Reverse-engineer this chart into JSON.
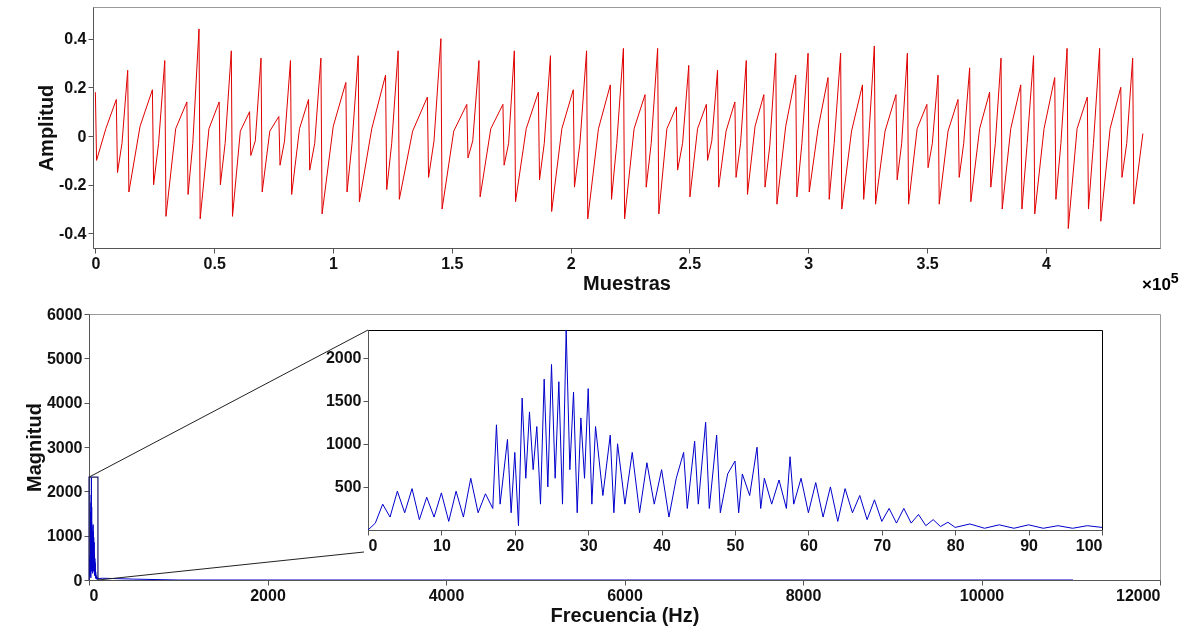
{
  "chart_data": [
    {
      "type": "line",
      "xlabel": "Muestras",
      "ylabel": "Amplitud",
      "annotations": [
        "×10$^{5}$"
      ],
      "xlim": [
        -0.01,
        4.48
      ],
      "ylim": [
        -0.46,
        0.53
      ],
      "xticks": [
        0,
        0.5,
        1,
        1.5,
        2,
        2.5,
        3,
        3.5,
        4
      ],
      "yticks": [
        -0.4,
        -0.2,
        0,
        0.2,
        0.4
      ],
      "x": [
        0,
        0.005,
        0.044,
        0.088,
        0.093,
        0.112,
        0.136,
        0.141,
        0.188,
        0.24,
        0.245,
        0.266,
        0.292,
        0.297,
        0.338,
        0.385,
        0.39,
        0.41,
        0.436,
        0.441,
        0.478,
        0.521,
        0.526,
        0.546,
        0.572,
        0.577,
        0.61,
        0.649,
        0.654,
        0.673,
        0.697,
        0.702,
        0.734,
        0.772,
        0.777,
        0.796,
        0.821,
        0.826,
        0.859,
        0.897,
        0.902,
        0.923,
        0.949,
        0.954,
        1.001,
        1.054,
        1.059,
        1.08,
        1.106,
        1.111,
        1.163,
        1.221,
        1.226,
        1.247,
        1.274,
        1.279,
        1.335,
        1.397,
        1.402,
        1.425,
        1.454,
        1.459,
        1.508,
        1.563,
        1.568,
        1.588,
        1.614,
        1.619,
        1.664,
        1.715,
        1.72,
        1.739,
        1.763,
        1.768,
        1.813,
        1.864,
        1.869,
        1.889,
        1.915,
        1.92,
        1.963,
        2.011,
        2.016,
        2.039,
        2.067,
        2.072,
        2.117,
        2.167,
        2.172,
        2.194,
        2.222,
        2.227,
        2.267,
        2.313,
        2.318,
        2.339,
        2.366,
        2.371,
        2.405,
        2.445,
        2.45,
        2.471,
        2.497,
        2.502,
        2.534,
        2.571,
        2.576,
        2.594,
        2.618,
        2.623,
        2.654,
        2.691,
        2.696,
        2.715,
        2.739,
        2.744,
        2.776,
        2.813,
        2.818,
        2.838,
        2.863,
        2.868,
        2.905,
        2.947,
        2.952,
        2.973,
        2.999,
        3.004,
        3.041,
        3.083,
        3.088,
        3.109,
        3.136,
        3.141,
        3.182,
        3.228,
        3.233,
        3.253,
        3.278,
        3.283,
        3.323,
        3.369,
        3.374,
        3.393,
        3.417,
        3.422,
        3.458,
        3.499,
        3.504,
        3.522,
        3.546,
        3.551,
        3.588,
        3.63,
        3.635,
        3.654,
        3.679,
        3.684,
        3.721,
        3.763,
        3.768,
        3.787,
        3.811,
        3.816,
        3.852,
        3.894,
        3.899,
        3.921,
        3.948,
        3.953,
        3.992,
        4.037,
        4.042,
        4.063,
        4.089,
        4.094,
        4.131,
        4.174,
        4.179,
        4.2,
        4.226,
        4.231,
        4.27,
        4.315,
        4.32,
        4.34,
        4.365,
        4.37,
        4.408
      ],
      "series": [
        {
          "color": "#e00000",
          "values": [
            0.18,
            -0.1,
            0.03,
            0.15,
            -0.15,
            -0.03,
            0.27,
            -0.23,
            0.04,
            0.19,
            -0.2,
            -0.03,
            0.31,
            -0.33,
            0.03,
            0.14,
            -0.24,
            -0.03,
            0.44,
            -0.34,
            0.03,
            0.14,
            -0.2,
            -0.03,
            0.35,
            -0.33,
            0.02,
            0.1,
            -0.08,
            -0.02,
            0.32,
            -0.23,
            0.02,
            0.08,
            -0.12,
            -0.02,
            0.31,
            -0.24,
            0.03,
            0.15,
            -0.14,
            -0.03,
            0.32,
            -0.32,
            0.04,
            0.22,
            -0.23,
            -0.03,
            0.33,
            -0.27,
            0.03,
            0.25,
            -0.22,
            -0.03,
            0.35,
            -0.26,
            0.02,
            0.16,
            -0.17,
            -0.02,
            0.4,
            -0.3,
            0.02,
            0.13,
            -0.09,
            -0.02,
            0.31,
            -0.25,
            0.03,
            0.13,
            -0.12,
            -0.03,
            0.35,
            -0.27,
            0.03,
            0.18,
            -0.18,
            -0.03,
            0.33,
            -0.31,
            0.03,
            0.19,
            -0.21,
            -0.03,
            0.35,
            -0.34,
            0.03,
            0.21,
            -0.26,
            -0.03,
            0.36,
            -0.34,
            0.03,
            0.17,
            -0.21,
            -0.03,
            0.36,
            -0.32,
            0.03,
            0.12,
            -0.14,
            -0.03,
            0.29,
            -0.25,
            0.03,
            0.13,
            -0.1,
            -0.02,
            0.27,
            -0.21,
            0.02,
            0.14,
            -0.17,
            -0.03,
            0.31,
            -0.24,
            0.04,
            0.17,
            -0.21,
            -0.04,
            0.34,
            -0.28,
            0.04,
            0.25,
            -0.25,
            -0.03,
            0.34,
            -0.23,
            0.03,
            0.24,
            -0.26,
            -0.03,
            0.34,
            -0.3,
            0.02,
            0.21,
            -0.26,
            -0.03,
            0.37,
            -0.28,
            0.02,
            0.17,
            -0.18,
            -0.03,
            0.34,
            -0.28,
            0.03,
            0.13,
            -0.13,
            -0.03,
            0.25,
            -0.28,
            0.02,
            0.15,
            -0.17,
            -0.03,
            0.28,
            -0.27,
            0.03,
            0.18,
            -0.21,
            -0.03,
            0.32,
            -0.3,
            0.03,
            0.21,
            -0.3,
            -0.03,
            0.33,
            -0.32,
            0.03,
            0.24,
            -0.26,
            -0.03,
            0.36,
            -0.38,
            0.03,
            0.16,
            -0.3,
            -0.03,
            0.36,
            -0.35,
            0.03,
            0.2,
            -0.17,
            -0.03,
            0.32,
            -0.28,
            0.01
          ]
        }
      ]
    },
    {
      "type": "line",
      "xlabel": "Frecuencia (Hz)",
      "ylabel": "Magnitud",
      "xlim": [
        0,
        12000
      ],
      "ylim": [
        0,
        6000
      ],
      "xticks": [
        0,
        2000,
        4000,
        6000,
        8000,
        10000,
        12000
      ],
      "yticks": [
        0,
        1000,
        2000,
        3000,
        4000,
        5000,
        6000
      ],
      "x": [
        0,
        1,
        2,
        3,
        4,
        5,
        6,
        7,
        8,
        9,
        10,
        11,
        12,
        13,
        14,
        15,
        16,
        17,
        17.5,
        18,
        19,
        19.5,
        20,
        20.5,
        21,
        21.5,
        22,
        22.5,
        23,
        23.5,
        24,
        24.5,
        25,
        25.5,
        26,
        26.5,
        27,
        27.5,
        28,
        28.5,
        29,
        29.5,
        30,
        30.5,
        31,
        32,
        33,
        33.5,
        34,
        35,
        36,
        37,
        38,
        39,
        40,
        41,
        42,
        43,
        43.5,
        44.5,
        45,
        46,
        46.5,
        47.5,
        48,
        49,
        50,
        50.5,
        51,
        52,
        53,
        53.5,
        54,
        55,
        56,
        57,
        57.5,
        58,
        59,
        60,
        61,
        62,
        63,
        64,
        65,
        66,
        67,
        68,
        69,
        70,
        71,
        72,
        73,
        74,
        75,
        76,
        77,
        78,
        79,
        80,
        82,
        84,
        86,
        88,
        90,
        92,
        94,
        96,
        98,
        100,
        150,
        500,
        1000,
        2000,
        4000,
        6000,
        8000,
        10000,
        11025
      ],
      "series": [
        {
          "color": "#0000cc",
          "values": [
            0,
            80,
            300,
            150,
            450,
            200,
            480,
            120,
            380,
            150,
            430,
            100,
            450,
            150,
            600,
            200,
            420,
            250,
            1220,
            300,
            1050,
            200,
            900,
            50,
            1530,
            600,
            1370,
            700,
            1200,
            300,
            1750,
            500,
            1920,
            600,
            1720,
            300,
            2320,
            700,
            1600,
            200,
            1300,
            600,
            1640,
            300,
            1200,
            400,
            1100,
            200,
            1000,
            300,
            900,
            200,
            780,
            300,
            700,
            150,
            600,
            900,
            250,
            1030,
            300,
            1250,
            250,
            1100,
            200,
            650,
            800,
            200,
            650,
            400,
            960,
            250,
            600,
            300,
            580,
            250,
            850,
            300,
            600,
            200,
            550,
            150,
            500,
            100,
            480,
            200,
            400,
            120,
            350,
            100,
            250,
            80,
            250,
            80,
            180,
            50,
            120,
            40,
            90,
            30,
            70,
            20,
            60,
            20,
            60,
            20,
            50,
            20,
            50,
            30,
            40,
            20,
            0,
            0,
            0,
            0,
            0,
            0,
            0
          ]
        }
      ]
    },
    {
      "type": "line",
      "xlim": [
        0,
        100
      ],
      "ylim": [
        0,
        2320
      ],
      "xticks": [
        0,
        10,
        20,
        30,
        40,
        50,
        60,
        70,
        80,
        90,
        100
      ],
      "yticks": [
        500,
        1000,
        1500,
        2000
      ],
      "x": [
        0,
        1,
        2,
        3,
        4,
        5,
        6,
        7,
        8,
        9,
        10,
        11,
        12,
        13,
        14,
        15,
        16,
        17,
        17.5,
        18,
        19,
        19.5,
        20,
        20.5,
        21,
        21.5,
        22,
        22.5,
        23,
        23.5,
        24,
        24.5,
        25,
        25.5,
        26,
        26.5,
        27,
        27.5,
        28,
        28.5,
        29,
        29.5,
        30,
        30.5,
        31,
        32,
        33,
        33.5,
        34,
        35,
        36,
        37,
        38,
        39,
        40,
        41,
        42,
        43,
        43.5,
        44.5,
        45,
        46,
        46.5,
        47.5,
        48,
        49,
        50,
        50.5,
        51,
        52,
        53,
        53.5,
        54,
        55,
        56,
        57,
        57.5,
        58,
        59,
        60,
        61,
        62,
        63,
        64,
        65,
        66,
        67,
        68,
        69,
        70,
        71,
        72,
        73,
        74,
        75,
        76,
        77,
        78,
        79,
        80,
        82,
        84,
        86,
        88,
        90,
        92,
        94,
        96,
        98,
        100
      ],
      "series": [
        {
          "color": "#0000cc",
          "values": [
            0,
            80,
            300,
            150,
            450,
            200,
            480,
            120,
            380,
            150,
            430,
            100,
            450,
            150,
            600,
            200,
            420,
            250,
            1220,
            300,
            1050,
            200,
            900,
            50,
            1530,
            600,
            1370,
            700,
            1200,
            300,
            1750,
            500,
            1920,
            600,
            1720,
            300,
            2320,
            700,
            1600,
            200,
            1300,
            600,
            1640,
            300,
            1200,
            400,
            1100,
            200,
            1000,
            300,
            900,
            200,
            780,
            300,
            700,
            150,
            600,
            900,
            250,
            1030,
            300,
            1250,
            250,
            1100,
            200,
            650,
            800,
            200,
            650,
            400,
            960,
            250,
            600,
            300,
            580,
            250,
            850,
            300,
            600,
            200,
            550,
            150,
            500,
            100,
            480,
            200,
            400,
            120,
            350,
            100,
            250,
            80,
            250,
            80,
            180,
            50,
            120,
            40,
            90,
            30,
            70,
            20,
            60,
            20,
            60,
            20,
            50,
            20,
            50,
            30
          ]
        }
      ]
    }
  ]
}
